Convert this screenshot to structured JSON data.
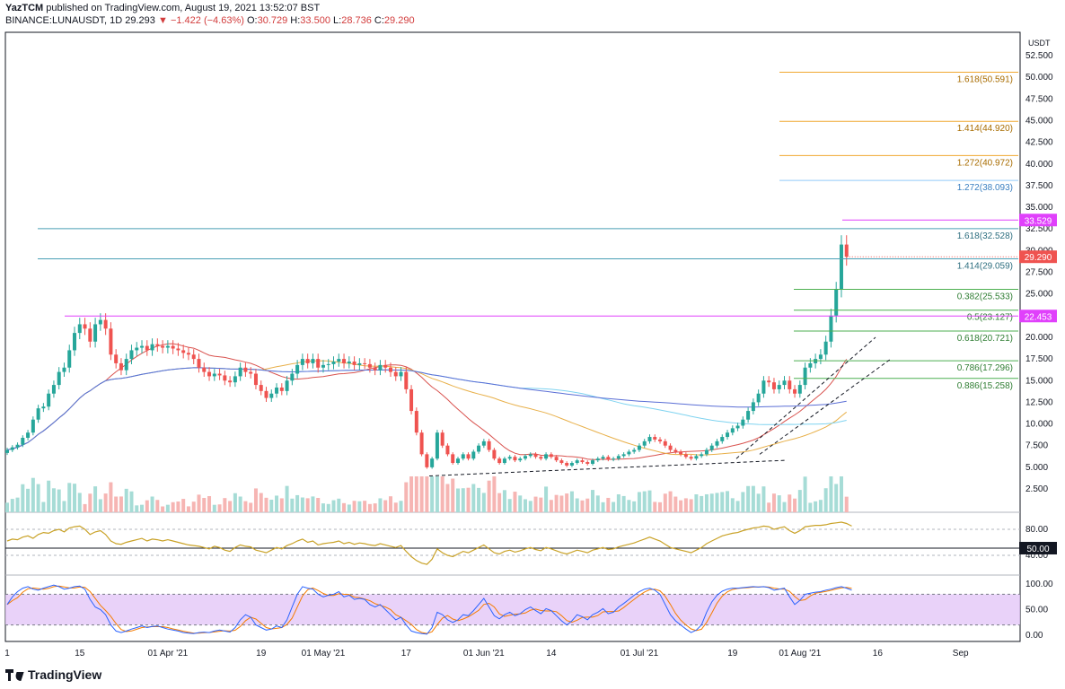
{
  "header": {
    "author": "YazTCM",
    "published_text": "published on TradingView.com, August 19, 2021 13:52:07 BST",
    "symbol": "BINANCE:LUNAUSDT, 1D",
    "last": "29.293",
    "change": "−1.422 (−4.63%)",
    "open_label": "O:",
    "open": "30.729",
    "high_label": "H:",
    "high": "33.500",
    "low_label": "L:",
    "low": "28.736",
    "close_label": "C:",
    "close": "29.290"
  },
  "brand": "TradingView",
  "colors": {
    "up": "#26a69a",
    "down": "#ef5350",
    "rsi": "#c9a227",
    "stoch_k": "#2962ff",
    "stoch_d": "#f57c00",
    "stoch_band": "#e3c7f7",
    "fib_orange": "#f0a830",
    "fib_blue": "#90caf9",
    "fib_green": "#4caf50",
    "magenta": "#e040fb",
    "teal_line": "#4a9fb5"
  },
  "chart_data": {
    "type": "candlestick",
    "currency_label": "USDT",
    "y_ticks": [
      "52.500",
      "50.000",
      "47.500",
      "45.000",
      "42.500",
      "40.000",
      "37.500",
      "35.000",
      "32.500",
      "30.000",
      "27.500",
      "25.000",
      "22.500",
      "20.000",
      "17.500",
      "15.000",
      "12.500",
      "10.000",
      "7.500",
      "5.000",
      "2.500"
    ],
    "ylim": [
      0,
      52.5
    ],
    "x_tick_labels": [
      {
        "label": "1",
        "day": 0
      },
      {
        "label": "15",
        "day": 14
      },
      {
        "label": "01 Apr '21",
        "day": 31
      },
      {
        "label": "19",
        "day": 49
      },
      {
        "label": "01 May '21",
        "day": 61
      },
      {
        "label": "17",
        "day": 77
      },
      {
        "label": "01 Jun '21",
        "day": 92
      },
      {
        "label": "14",
        "day": 105
      },
      {
        "label": "01 Jul '21",
        "day": 122
      },
      {
        "label": "19",
        "day": 140
      },
      {
        "label": "01 Aug '21",
        "day": 153
      },
      {
        "label": "16",
        "day": 168
      },
      {
        "label": "Sep",
        "day": 184
      }
    ],
    "price_closes": [
      7.0,
      7.3,
      7.6,
      8.4,
      9.0,
      10.5,
      11.8,
      12.0,
      13.5,
      14.5,
      16.0,
      16.5,
      18.5,
      20.5,
      21.5,
      21.0,
      19.5,
      21.5,
      22.0,
      21.0,
      18.0,
      17.0,
      16.2,
      17.5,
      18.5,
      18.8,
      19.0,
      18.5,
      19.2,
      19.0,
      18.8,
      19.0,
      18.7,
      18.5,
      18.2,
      18.0,
      17.5,
      16.5,
      16.0,
      15.5,
      15.8,
      15.6,
      15.0,
      14.8,
      15.5,
      16.5,
      16.0,
      15.8,
      14.5,
      13.8,
      13.0,
      13.5,
      14.2,
      13.8,
      15.0,
      15.8,
      16.8,
      17.5,
      17.0,
      17.5,
      16.5,
      16.8,
      16.9,
      17.2,
      17.5,
      17.0,
      17.2,
      16.8,
      17.0,
      16.9,
      16.5,
      16.2,
      16.8,
      16.5,
      16.0,
      15.5,
      16.0,
      14.0,
      11.5,
      9.0,
      6.5,
      5.0,
      6.0,
      9.0,
      7.5,
      6.5,
      5.5,
      6.0,
      6.5,
      6.0,
      6.8,
      7.5,
      8.0,
      7.0,
      6.0,
      5.5,
      6.0,
      6.2,
      5.8,
      6.0,
      6.3,
      6.5,
      6.2,
      6.0,
      6.5,
      6.2,
      5.8,
      5.5,
      5.2,
      5.5,
      5.8,
      5.6,
      5.4,
      5.8,
      6.0,
      6.2,
      5.9,
      6.0,
      6.3,
      6.5,
      6.8,
      7.0,
      7.5,
      8.0,
      8.5,
      8.2,
      8.0,
      7.5,
      7.0,
      6.8,
      6.5,
      6.2,
      6.0,
      6.3,
      6.5,
      7.0,
      7.5,
      8.0,
      8.5,
      9.0,
      9.5,
      9.8,
      10.5,
      11.5,
      12.5,
      13.5,
      15.0,
      14.8,
      14.0,
      14.5,
      15.0,
      14.0,
      13.5,
      14.5,
      16.5,
      17.0,
      17.5,
      18.0,
      19.5,
      22.5,
      25.5,
      30.7,
      29.29
    ],
    "last_price": "29.290",
    "horizontal_levels": [
      {
        "label": "1.618(50.591)",
        "value": 50.591,
        "color": "#f0a830"
      },
      {
        "label": "1.414(44.920)",
        "value": 44.92,
        "color": "#f0a830"
      },
      {
        "label": "1.272(40.972)",
        "value": 40.972,
        "color": "#f0a830"
      },
      {
        "label": "1.272(38.093)",
        "value": 38.093,
        "color": "#90caf9"
      },
      {
        "label": "1.618(32.528)",
        "value": 32.528,
        "color": "#4a9fb5"
      },
      {
        "label": "1.414(29.059)",
        "value": 29.059,
        "color": "#4a9fb5"
      },
      {
        "label": "0.382(25.533)",
        "value": 25.533,
        "color": "#4caf50"
      },
      {
        "label": "0.5(23.127)",
        "value": 23.127,
        "color": "#4caf50"
      },
      {
        "label": "0.618(20.721)",
        "value": 20.721,
        "color": "#4caf50"
      },
      {
        "label": "0.786(17.296)",
        "value": 17.296,
        "color": "#4caf50"
      },
      {
        "label": "0.886(15.258)",
        "value": 15.258,
        "color": "#4caf50"
      }
    ],
    "price_badges": [
      {
        "label": "33.529",
        "value": 33.529,
        "color": "#e040fb"
      },
      {
        "label": "29.290",
        "value": 29.29,
        "color": "#ef5350"
      },
      {
        "label": "22.453",
        "value": 22.453,
        "color": "#e040fb"
      }
    ],
    "rsi": {
      "ticks": [
        "80.00",
        "40.00"
      ],
      "badge": "50.00",
      "values": [
        62,
        65,
        64,
        68,
        70,
        66,
        72,
        75,
        74,
        78,
        80,
        76,
        82,
        84,
        85,
        80,
        72,
        76,
        78,
        72,
        62,
        58,
        57,
        60,
        62,
        64,
        66,
        62,
        65,
        64,
        62,
        64,
        62,
        60,
        58,
        56,
        55,
        54,
        52,
        50,
        54,
        52,
        48,
        46,
        52,
        56,
        54,
        53,
        48,
        46,
        44,
        48,
        52,
        50,
        55,
        58,
        62,
        65,
        60,
        62,
        56,
        58,
        59,
        60,
        62,
        58,
        60,
        57,
        59,
        58,
        56,
        55,
        58,
        56,
        54,
        52,
        55,
        46,
        38,
        32,
        28,
        26,
        34,
        50,
        44,
        40,
        38,
        42,
        46,
        44,
        48,
        52,
        56,
        50,
        44,
        42,
        46,
        48,
        45,
        47,
        50,
        52,
        49,
        47,
        52,
        50,
        47,
        44,
        42,
        45,
        48,
        46,
        44,
        48,
        50,
        52,
        49,
        50,
        53,
        55,
        57,
        59,
        62,
        65,
        68,
        65,
        62,
        57,
        52,
        50,
        48,
        46,
        44,
        48,
        52,
        58,
        62,
        66,
        70,
        72,
        74,
        75,
        78,
        80,
        82,
        83,
        85,
        84,
        80,
        82,
        84,
        78,
        74,
        78,
        84,
        85,
        86,
        86,
        87,
        89,
        90,
        91,
        89,
        85
      ]
    },
    "stoch": {
      "ticks": [
        "100.00",
        "50.00",
        "0.00"
      ],
      "k": [
        60,
        75,
        85,
        92,
        95,
        90,
        88,
        92,
        95,
        98,
        95,
        90,
        92,
        95,
        96,
        90,
        70,
        55,
        50,
        40,
        20,
        8,
        5,
        8,
        12,
        15,
        18,
        15,
        17,
        18,
        15,
        12,
        10,
        8,
        5,
        4,
        3,
        5,
        6,
        5,
        8,
        10,
        8,
        6,
        15,
        30,
        40,
        35,
        20,
        15,
        10,
        12,
        18,
        15,
        30,
        55,
        80,
        95,
        92,
        90,
        80,
        75,
        78,
        80,
        85,
        75,
        78,
        70,
        72,
        70,
        60,
        55,
        60,
        50,
        40,
        30,
        35,
        20,
        8,
        5,
        3,
        2,
        15,
        45,
        40,
        30,
        25,
        30,
        40,
        38,
        48,
        60,
        72,
        55,
        38,
        32,
        40,
        45,
        38,
        42,
        50,
        55,
        48,
        42,
        52,
        48,
        38,
        28,
        20,
        28,
        40,
        36,
        30,
        40,
        45,
        52,
        42,
        45,
        55,
        62,
        70,
        78,
        85,
        90,
        92,
        88,
        80,
        60,
        40,
        28,
        20,
        12,
        5,
        10,
        20,
        45,
        65,
        78,
        86,
        90,
        92,
        92,
        93,
        94,
        95,
        94,
        95,
        93,
        88,
        90,
        92,
        75,
        60,
        68,
        80,
        82,
        84,
        85,
        88,
        90,
        93,
        95,
        92,
        88
      ],
      "d_lag": 2
    },
    "volume_max": 5.5
  }
}
